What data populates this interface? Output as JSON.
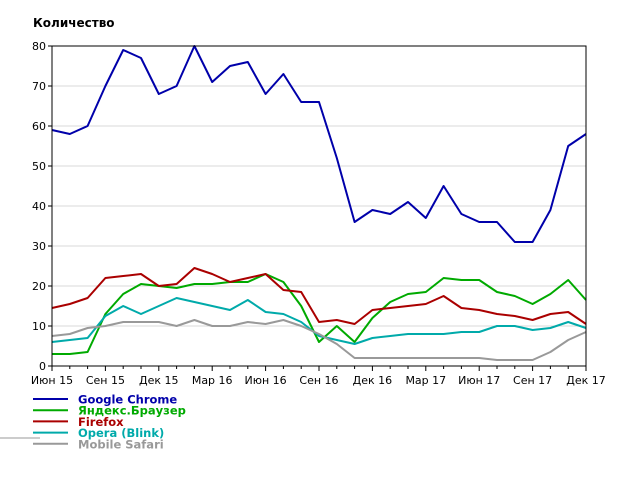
{
  "chart_data": {
    "type": "line",
    "ylabel": "Количество",
    "xlabel": "",
    "title": "",
    "ylim": [
      0,
      80
    ],
    "yticks": [
      0,
      10,
      20,
      30,
      40,
      50,
      60,
      70,
      80
    ],
    "grid": true,
    "legend_position": "bottom-left",
    "x": [
      "2015-06",
      "2015-07",
      "2015-08",
      "2015-09",
      "2015-10",
      "2015-11",
      "2015-12",
      "2016-01",
      "2016-02",
      "2016-03",
      "2016-04",
      "2016-05",
      "2016-06",
      "2016-07",
      "2016-08",
      "2016-09",
      "2016-10",
      "2016-11",
      "2016-12",
      "2017-01",
      "2017-02",
      "2017-03",
      "2017-04",
      "2017-05",
      "2017-06",
      "2017-07",
      "2017-08",
      "2017-09",
      "2017-10",
      "2017-11",
      "2017-12"
    ],
    "x_tick_labels": [
      "Июн 15",
      "Сен 15",
      "Дек 15",
      "Мар 16",
      "Июн 16",
      "Сен 16",
      "Дек 16",
      "Мар 17",
      "Июн 17",
      "Сен 17",
      "Дек 17"
    ],
    "series": [
      {
        "name": "Google Chrome",
        "color": "#0000aa",
        "values": [
          59,
          58,
          60,
          70,
          79,
          77,
          68,
          70,
          80,
          71,
          75,
          76,
          68,
          73,
          66,
          66,
          52,
          36,
          39,
          38,
          41,
          37,
          45,
          38,
          36,
          36,
          31,
          31,
          39,
          55,
          58
        ]
      },
      {
        "name": "Яндекс.Браузер",
        "color": "#00aa00",
        "values": [
          3,
          3,
          3.5,
          13,
          18,
          20.5,
          20,
          19.5,
          20.5,
          20.5,
          21,
          21,
          23,
          21,
          15,
          6,
          10,
          6,
          12,
          16,
          18,
          18.5,
          22,
          21.5,
          21.5,
          18.5,
          17.5,
          15.5,
          18,
          21.5,
          16.5
        ]
      },
      {
        "name": "Firefox",
        "color": "#aa0000",
        "values": [
          14.5,
          15.5,
          17,
          22,
          22.5,
          23,
          20,
          20.5,
          24.5,
          23,
          21,
          22,
          23,
          19,
          18.5,
          11,
          11.5,
          10.5,
          14,
          14.5,
          15,
          15.5,
          17.5,
          14.5,
          14,
          13,
          12.5,
          11.5,
          13,
          13.5,
          10.5
        ]
      },
      {
        "name": "Opera (Blink)",
        "color": "#00aaaa",
        "values": [
          6,
          6.5,
          7,
          12.5,
          15,
          13,
          15,
          17,
          16,
          15,
          14,
          16.5,
          13.5,
          13,
          11,
          7.5,
          6.5,
          5.5,
          7,
          7.5,
          8,
          8,
          8,
          8.5,
          8.5,
          10,
          10,
          9,
          9.5,
          11,
          9.5
        ]
      },
      {
        "name": "Mobile Safari",
        "color": "#999999",
        "values": [
          7.5,
          8,
          9.5,
          10,
          11,
          11,
          11,
          10,
          11.5,
          10,
          10,
          11,
          10.5,
          11.5,
          10,
          8,
          5.5,
          2,
          2,
          2,
          2,
          2,
          2,
          2,
          2,
          1.5,
          1.5,
          1.5,
          3.5,
          6.5,
          8.5
        ]
      }
    ]
  }
}
